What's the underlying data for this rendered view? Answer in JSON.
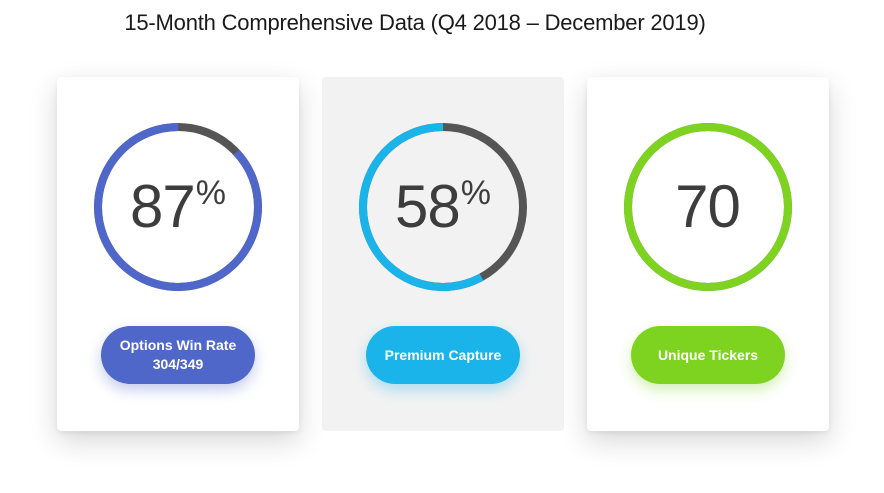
{
  "header": {
    "title": "15-Month Comprehensive Data (Q4 2018 – December 2019)"
  },
  "track_color": "#555555",
  "cards": [
    {
      "value": "87",
      "unit": "%",
      "fraction": 0.87,
      "accent": "#4f67c9",
      "label_line1": "Options Win Rate",
      "label_line2": "304/349",
      "card_style": "raised"
    },
    {
      "value": "58",
      "unit": "%",
      "fraction": 0.58,
      "accent": "#1ab3ea",
      "label_line1": "Premium Capture",
      "label_line2": "",
      "card_style": "flat"
    },
    {
      "value": "70",
      "unit": "",
      "fraction": 1.0,
      "accent": "#7ed321",
      "label_line1": "Unique Tickers",
      "label_line2": "",
      "card_style": "raised"
    }
  ]
}
